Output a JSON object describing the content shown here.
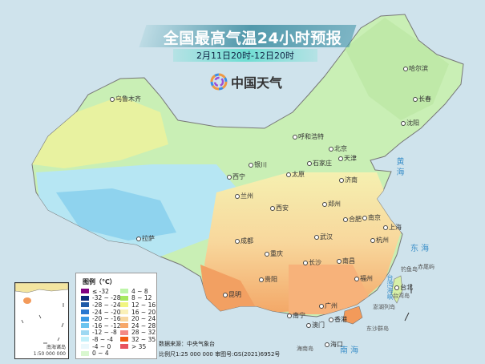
{
  "title": "全国最高气温24小时预报",
  "subtitle": "2月11日20时-12日20时",
  "logo": {
    "text": "中国天气",
    "icon": "pinwheel-logo-icon"
  },
  "cities": [
    {
      "name": "乌鲁木齐"
    },
    {
      "name": "哈尔滨"
    },
    {
      "name": "长春"
    },
    {
      "name": "沈阳"
    },
    {
      "name": "呼和浩特"
    },
    {
      "name": "北京"
    },
    {
      "name": "天津"
    },
    {
      "name": "石家庄"
    },
    {
      "name": "太原"
    },
    {
      "name": "银川"
    },
    {
      "name": "西宁"
    },
    {
      "name": "兰州"
    },
    {
      "name": "济南"
    },
    {
      "name": "郑州"
    },
    {
      "name": "西安"
    },
    {
      "name": "合肥"
    },
    {
      "name": "南京"
    },
    {
      "name": "上海"
    },
    {
      "name": "武汉"
    },
    {
      "name": "成都"
    },
    {
      "name": "重庆"
    },
    {
      "name": "杭州"
    },
    {
      "name": "拉萨"
    },
    {
      "name": "长沙"
    },
    {
      "name": "南昌"
    },
    {
      "name": "贵阳"
    },
    {
      "name": "福州"
    },
    {
      "name": "台北"
    },
    {
      "name": "昆明"
    },
    {
      "name": "南宁"
    },
    {
      "name": "广州"
    },
    {
      "name": "香港"
    },
    {
      "name": "澳门"
    },
    {
      "name": "海口"
    }
  ],
  "seas": {
    "huanghai": "黄 海",
    "donghai": "东 海",
    "nanhai": "南 海",
    "taiwan_strait": "台湾海峡"
  },
  "islands": {
    "diaoyu": "钓鱼岛",
    "chiwei": "赤尾屿",
    "taiwan": "台湾岛",
    "penghu": "澎湖列岛",
    "dongsha": "东沙群岛",
    "hainan": "海南岛"
  },
  "legend": {
    "title": "图例（℃）",
    "items": [
      {
        "label": "≤ -32",
        "color": "#800080"
      },
      {
        "label": "-32 ~ -28",
        "color": "#0b2a7a"
      },
      {
        "label": "-28 ~ -24",
        "color": "#1f5aa8"
      },
      {
        "label": "-24 ~ -20",
        "color": "#2a78d0"
      },
      {
        "label": "-20 ~ -16",
        "color": "#3b9be6"
      },
      {
        "label": "-16 ~ -12",
        "color": "#6cc4ef"
      },
      {
        "label": "-12 ~ -8",
        "color": "#9ed8f2"
      },
      {
        "label": "-8 ~ -4",
        "color": "#c2f0fa"
      },
      {
        "label": "-4 ~ 0",
        "color": "#eaf8fc"
      },
      {
        "label": "0 ~ 4",
        "color": "#d9f7cf"
      },
      {
        "label": "4 ~ 8",
        "color": "#bdf5a8"
      },
      {
        "label": "8 ~ 12",
        "color": "#a6e85e"
      },
      {
        "label": "12 ~ 16",
        "color": "#f1f580"
      },
      {
        "label": "16 ~ 20",
        "color": "#faf0b8"
      },
      {
        "label": "20 ~ 24",
        "color": "#f8d7a0"
      },
      {
        "label": "24 ~ 28",
        "color": "#f7a86a"
      },
      {
        "label": "28 ~ 32",
        "color": "#f48a84"
      },
      {
        "label": "32 ~ 35",
        "color": "#f25a12"
      },
      {
        "label": "> 35",
        "color": "#e8545e"
      }
    ]
  },
  "inset": {
    "label": "南海诸岛",
    "scale": "1:50 000 000"
  },
  "footer": {
    "source": "数据来源：中央气象台",
    "scale": "比例尺1:25 000 000   审图号:GS(2021)6952号"
  }
}
